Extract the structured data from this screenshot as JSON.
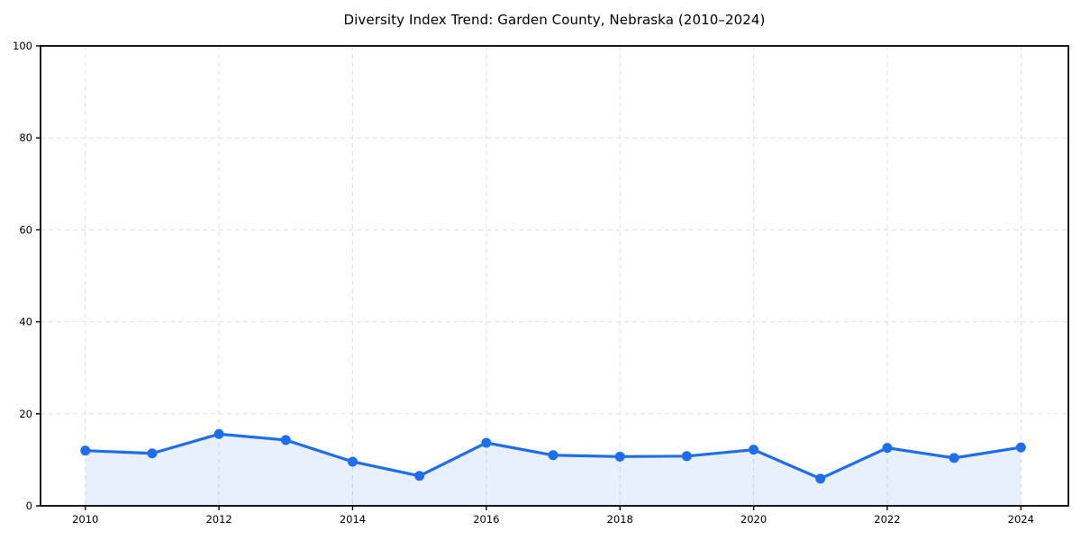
{
  "chart_data": {
    "type": "area",
    "title": "Diversity Index Trend: Garden County, Nebraska (2010–2024)",
    "x": [
      2010,
      2011,
      2012,
      2013,
      2014,
      2015,
      2016,
      2017,
      2018,
      2019,
      2020,
      2021,
      2022,
      2023,
      2024
    ],
    "series": [
      {
        "name": "Diversity Index",
        "values": [
          12.0,
          11.4,
          15.6,
          14.3,
          9.6,
          6.5,
          13.7,
          11.0,
          10.7,
          10.8,
          12.2,
          5.9,
          12.6,
          10.4,
          12.7
        ]
      }
    ],
    "xlabel": "",
    "ylabel": "",
    "xlim": [
      2009.33,
      2024.71
    ],
    "ylim": [
      0,
      100
    ],
    "xticks": [
      2010,
      2012,
      2014,
      2016,
      2018,
      2020,
      2022,
      2024
    ],
    "yticks": [
      0,
      20,
      40,
      60,
      80,
      100
    ],
    "grid": true,
    "grid_style": "dashed",
    "legend": false,
    "marker": "circle"
  },
  "colors": {
    "line": "#1e6eeb",
    "marker": "#1e6eeb",
    "fill": "rgba(30,110,235,0.10)",
    "grid": "#e1e1e1",
    "axis": "#000000",
    "tick_label": "#000000",
    "title": "#000000",
    "background": "#ffffff"
  }
}
